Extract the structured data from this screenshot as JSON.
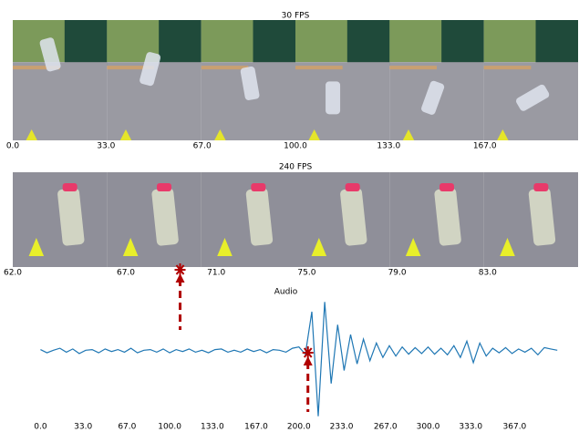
{
  "chart_data": [
    {
      "type": "image",
      "title": "30 FPS",
      "xlim": [
        0,
        200
      ],
      "xticks": [
        {
          "value": 0,
          "label": "0.0"
        },
        {
          "value": 33,
          "label": "33.0"
        },
        {
          "value": 67,
          "label": "67.0"
        },
        {
          "value": 100,
          "label": "100.0"
        },
        {
          "value": 133,
          "label": "133.0"
        },
        {
          "value": 167,
          "label": "167.0"
        }
      ]
    },
    {
      "type": "image",
      "title": "240 FPS",
      "xlim": [
        62,
        87
      ],
      "xticks": [
        {
          "value": 62,
          "label": "62.0"
        },
        {
          "value": 67,
          "label": "67.0"
        },
        {
          "value": 71,
          "label": "71.0"
        },
        {
          "value": 75,
          "label": "75.0"
        },
        {
          "value": 79,
          "label": "79.0"
        },
        {
          "value": 83,
          "label": "83.0"
        }
      ],
      "marker_x": 69.4,
      "marker_color": "#b00000"
    },
    {
      "type": "line",
      "title": "Audio",
      "xlim": [
        -1,
        402
      ],
      "ylim": [
        -1.2,
        1.2
      ],
      "xticks": [
        {
          "value": 0,
          "label": "0.0"
        },
        {
          "value": 33,
          "label": "33.0"
        },
        {
          "value": 67,
          "label": "67.0"
        },
        {
          "value": 100,
          "label": "100.0"
        },
        {
          "value": 133,
          "label": "133.0"
        },
        {
          "value": 167,
          "label": "167.0"
        },
        {
          "value": 200,
          "label": "200.0"
        },
        {
          "value": 233,
          "label": "233.0"
        },
        {
          "value": 267,
          "label": "267.0"
        },
        {
          "value": 300,
          "label": "300.0"
        },
        {
          "value": 333,
          "label": "333.0"
        },
        {
          "value": 367,
          "label": "367.0"
        }
      ],
      "x": [
        0,
        5,
        10,
        15,
        20,
        25,
        30,
        35,
        40,
        45,
        50,
        55,
        60,
        65,
        70,
        75,
        80,
        85,
        90,
        95,
        100,
        105,
        110,
        115,
        120,
        125,
        130,
        135,
        140,
        145,
        150,
        155,
        160,
        165,
        170,
        175,
        180,
        185,
        190,
        195,
        200,
        205,
        210,
        215,
        220,
        225,
        230,
        235,
        240,
        245,
        250,
        255,
        260,
        265,
        270,
        275,
        280,
        285,
        290,
        295,
        300,
        305,
        310,
        315,
        320,
        325,
        330,
        335,
        340,
        345,
        350,
        355,
        360,
        365,
        370,
        375,
        380,
        385,
        390,
        395,
        400
      ],
      "series": [
        {
          "color": "#1f77b4",
          "values": [
            0.02,
            -0.03,
            0.01,
            0.04,
            -0.02,
            0.03,
            -0.04,
            0.01,
            0.02,
            -0.03,
            0.03,
            -0.01,
            0.02,
            -0.02,
            0.04,
            -0.03,
            0.01,
            0.02,
            -0.02,
            0.03,
            -0.03,
            0.02,
            -0.01,
            0.03,
            -0.02,
            0.01,
            -0.03,
            0.02,
            0.03,
            -0.02,
            0.01,
            -0.02,
            0.03,
            -0.01,
            0.02,
            -0.03,
            0.02,
            0.01,
            -0.02,
            0.04,
            0.06,
            -0.05,
            0.6,
            -1.0,
            0.75,
            -0.5,
            0.4,
            -0.3,
            0.25,
            -0.2,
            0.18,
            -0.15,
            0.12,
            -0.1,
            0.08,
            -0.08,
            0.06,
            -0.05,
            0.05,
            -0.04,
            0.06,
            -0.05,
            0.04,
            -0.06,
            0.08,
            -0.1,
            0.15,
            -0.18,
            0.12,
            -0.08,
            0.04,
            -0.03,
            0.05,
            -0.04,
            0.03,
            -0.02,
            0.04,
            -0.06,
            0.05,
            0.03,
            0.01
          ]
        }
      ],
      "marker_x": 207,
      "marker_color": "#b00000"
    }
  ]
}
